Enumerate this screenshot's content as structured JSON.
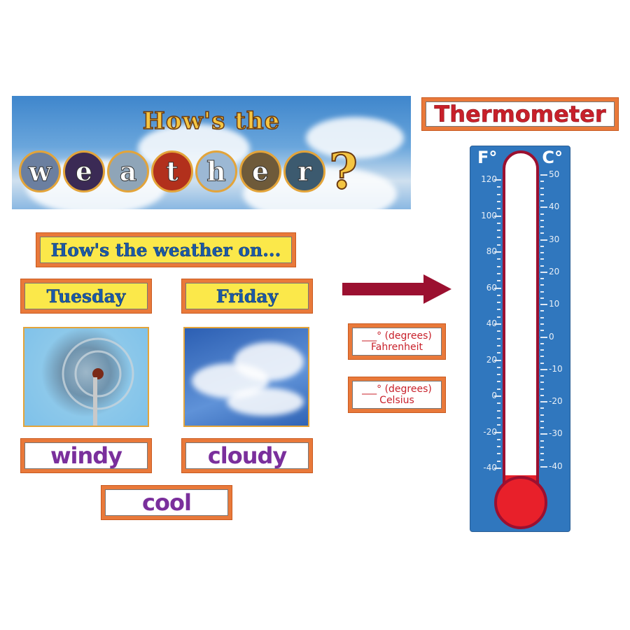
{
  "banner": {
    "title_line1": "How's the",
    "letters": [
      "w",
      "e",
      "a",
      "t",
      "h",
      "e",
      "r"
    ],
    "question_mark": "?"
  },
  "prompt": "How's the weather on...",
  "days": [
    {
      "label": "Tuesday",
      "word": "windy",
      "photo": "windmill"
    },
    {
      "label": "Friday",
      "word": "cloudy",
      "photo": "clouds"
    }
  ],
  "extra_word": "cool",
  "labels": {
    "fahrenheit": {
      "line1": "___° (degrees)",
      "line2": "Fahrenheit"
    },
    "celsius": {
      "line1": "___° (degrees)",
      "line2": "Celsius"
    }
  },
  "thermometer": {
    "title": "Thermometer",
    "f_unit": "F°",
    "c_unit": "C°",
    "f_ticks": [
      "120",
      "100",
      "80",
      "60",
      "40",
      "20",
      "0",
      "-20",
      "-40"
    ],
    "c_ticks": [
      "50",
      "40",
      "30",
      "20",
      "10",
      "0",
      "-10",
      "-20",
      "-30",
      "-40"
    ],
    "mercury_level_f": -44
  },
  "colors": {
    "border": "#e9793a",
    "card_yellow": "#fbe84a",
    "word": "#7a2f9c",
    "heading": "#1c5aa8",
    "thermometer": "#3077be",
    "mercury": "#e8202a",
    "arrow": "#9b1030"
  }
}
